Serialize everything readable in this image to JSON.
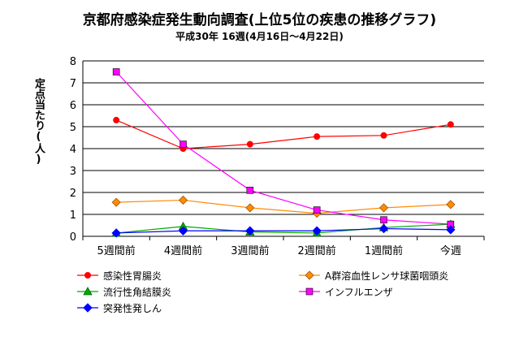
{
  "chart_data": {
    "type": "line",
    "title": "京都府感染症発生動向調査(上位5位の疾患の推移グラフ)",
    "subtitle": "平成30年 16週(4月16日～4月22日)",
    "ylabel": "定点当たり(人)",
    "xlabel": "",
    "categories": [
      "5週間前",
      "4週間前",
      "3週間前",
      "2週間前",
      "1週間前",
      "今週"
    ],
    "ylim": [
      0,
      8
    ],
    "yticks": [
      0,
      1,
      2,
      3,
      4,
      5,
      6,
      7,
      8
    ],
    "grid": true,
    "legend_position": "bottom",
    "series": [
      {
        "name": "感染性胃腸炎",
        "color": "#ff0000",
        "marker": "circle",
        "values": [
          5.3,
          4.0,
          4.2,
          4.55,
          4.6,
          5.1
        ]
      },
      {
        "name": "A群溶血性レンサ球菌咽頭炎",
        "color": "#ff8c00",
        "marker": "diamond-open",
        "values": [
          1.55,
          1.65,
          1.3,
          1.05,
          1.3,
          1.45
        ]
      },
      {
        "name": "流行性角結膜炎",
        "color": "#00aa00",
        "marker": "triangle",
        "values": [
          0.15,
          0.45,
          0.2,
          0.15,
          0.4,
          0.55
        ]
      },
      {
        "name": "インフルエンザ",
        "color": "#ff00ff",
        "marker": "square",
        "values": [
          7.5,
          4.2,
          2.1,
          1.2,
          0.75,
          0.55
        ]
      },
      {
        "name": "突発性発しん",
        "color": "#0000ff",
        "marker": "diamond",
        "values": [
          0.15,
          0.25,
          0.25,
          0.25,
          0.35,
          0.3
        ]
      }
    ]
  }
}
